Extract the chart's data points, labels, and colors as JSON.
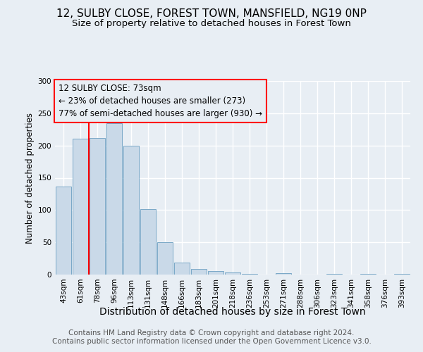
{
  "title": "12, SULBY CLOSE, FOREST TOWN, MANSFIELD, NG19 0NP",
  "subtitle": "Size of property relative to detached houses in Forest Town",
  "xlabel": "Distribution of detached houses by size in Forest Town",
  "ylabel": "Number of detached properties",
  "footer1": "Contains HM Land Registry data © Crown copyright and database right 2024.",
  "footer2": "Contains public sector information licensed under the Open Government Licence v3.0.",
  "annotation_line1": "12 SULBY CLOSE: 73sqm",
  "annotation_line2": "← 23% of detached houses are smaller (273)",
  "annotation_line3": "77% of semi-detached houses are larger (930) →",
  "bar_labels": [
    "43sqm",
    "61sqm",
    "78sqm",
    "96sqm",
    "113sqm",
    "131sqm",
    "148sqm",
    "166sqm",
    "183sqm",
    "201sqm",
    "218sqm",
    "236sqm",
    "253sqm",
    "271sqm",
    "288sqm",
    "306sqm",
    "323sqm",
    "341sqm",
    "358sqm",
    "376sqm",
    "393sqm"
  ],
  "bar_values": [
    136,
    211,
    212,
    234,
    200,
    101,
    50,
    19,
    9,
    5,
    3,
    1,
    0,
    2,
    0,
    0,
    1,
    0,
    1,
    0,
    1
  ],
  "bar_color": "#c9d9e8",
  "bar_edge_color": "#7aa8c7",
  "red_line_x": 1.5,
  "ylim": [
    0,
    300
  ],
  "yticks": [
    0,
    50,
    100,
    150,
    200,
    250,
    300
  ],
  "background_color": "#e8eef4",
  "grid_color": "#ffffff",
  "title_fontsize": 11,
  "subtitle_fontsize": 9.5,
  "xlabel_fontsize": 10,
  "ylabel_fontsize": 8.5,
  "tick_fontsize": 7.5,
  "annotation_fontsize": 8.5,
  "footer_fontsize": 7.5
}
